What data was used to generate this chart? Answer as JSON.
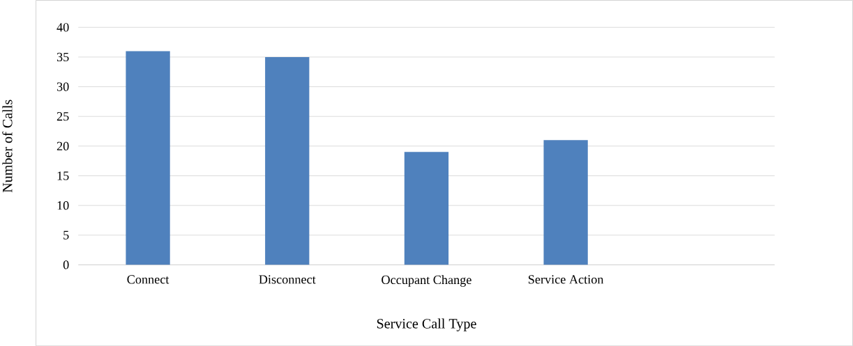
{
  "chart_data": {
    "type": "bar",
    "xlabel": "Service Call Type",
    "ylabel": "Number of Calls",
    "categories": [
      "Connect",
      "Disconnect",
      "Occupant Change",
      "Service Action",
      null
    ],
    "values": [
      36,
      35,
      19,
      21,
      null
    ],
    "color": "#4f81bd",
    "ylim": [
      0,
      40
    ],
    "yticks": [
      0,
      5,
      10,
      15,
      20,
      25,
      30,
      35,
      40
    ],
    "grid": "y"
  }
}
